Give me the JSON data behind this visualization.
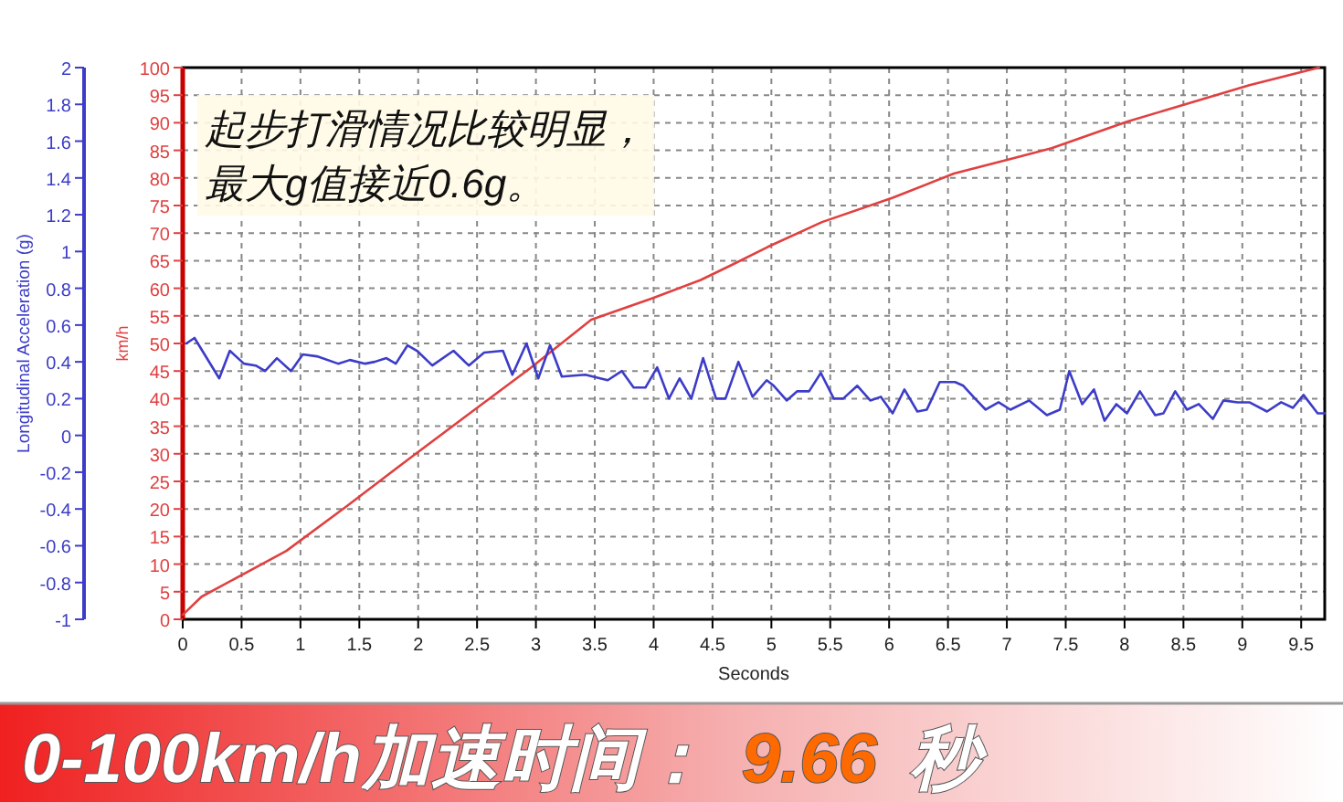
{
  "chart_data": {
    "type": "line",
    "xlabel": "Seconds",
    "ylabel": "km/h",
    "y2label": "Longitudinal Acceleration (g)",
    "annotations": [
      "起步打滑情况比较明显，",
      "最大g值接近0.6g。",
      "0-100km/h加速时间：",
      "9.66",
      "秒"
    ],
    "xlim": [
      0,
      9.7
    ],
    "xticks": [
      0,
      0.5,
      1,
      1.5,
      2,
      2.5,
      3,
      3.5,
      4,
      4.5,
      5,
      5.5,
      6,
      6.5,
      7,
      7.5,
      8,
      8.5,
      9,
      9.5
    ],
    "ylim": [
      0,
      100
    ],
    "yticks": [
      0,
      5,
      10,
      15,
      20,
      25,
      30,
      35,
      40,
      45,
      50,
      55,
      60,
      65,
      70,
      75,
      80,
      85,
      90,
      95,
      100
    ],
    "y2lim": [
      -1,
      2
    ],
    "y2ticks": [
      -1,
      -0.8,
      -0.6,
      -0.4,
      -0.2,
      0,
      0.2,
      0.4,
      0.6,
      0.8,
      1,
      1.2,
      1.4,
      1.6,
      1.8,
      2
    ],
    "grid": true,
    "line_style": "solid",
    "series": [
      {
        "color": "#e04040",
        "x": [
          0,
          0.16,
          0.88,
          1.4,
          1.91,
          2.43,
          2.95,
          3.47,
          3.99,
          4.4,
          4.66,
          4.97,
          5.43,
          6.03,
          6.55,
          7.04,
          7.38,
          8.02,
          8.54,
          9.06,
          9.65
        ],
        "values": [
          0.8,
          4.1,
          12.4,
          20.6,
          28.9,
          37.2,
          45.5,
          54.3,
          58.2,
          61.5,
          64.2,
          67.5,
          72,
          76.4,
          80.8,
          83.5,
          85.4,
          90.2,
          93.5,
          96.8,
          100
        ]
      },
      {
        "color": "#3c3cc8",
        "axis": "y2",
        "x": [
          0.03,
          0.1,
          0.31,
          0.4,
          0.52,
          0.62,
          0.7,
          0.8,
          0.92,
          1.02,
          1.14,
          1.32,
          1.42,
          1.55,
          1.63,
          1.73,
          1.81,
          1.91,
          1.99,
          2.12,
          2.3,
          2.43,
          2.56,
          2.72,
          2.8,
          2.92,
          3.02,
          3.12,
          3.22,
          3.42,
          3.61,
          3.73,
          3.83,
          3.93,
          4.03,
          4.13,
          4.22,
          4.32,
          4.42,
          4.53,
          4.61,
          4.72,
          4.84,
          4.96,
          5.02,
          5.13,
          5.22,
          5.32,
          5.42,
          5.53,
          5.61,
          5.73,
          5.84,
          5.93,
          6.03,
          6.13,
          6.24,
          6.32,
          6.43,
          6.56,
          6.63,
          6.73,
          6.82,
          6.93,
          7.03,
          7.19,
          7.34,
          7.45,
          7.53,
          7.64,
          7.74,
          7.83,
          7.93,
          8.02,
          8.13,
          8.26,
          8.33,
          8.43,
          8.53,
          8.63,
          8.75,
          8.84,
          8.96,
          9.06,
          9.21,
          9.33,
          9.43,
          9.52,
          9.64,
          9.7
        ],
        "values": [
          0.5,
          0.53,
          0.31,
          0.46,
          0.39,
          0.38,
          0.35,
          0.42,
          0.35,
          0.44,
          0.43,
          0.39,
          0.41,
          0.39,
          0.4,
          0.42,
          0.39,
          0.49,
          0.46,
          0.38,
          0.46,
          0.38,
          0.45,
          0.46,
          0.33,
          0.5,
          0.31,
          0.49,
          0.32,
          0.33,
          0.3,
          0.35,
          0.26,
          0.26,
          0.37,
          0.2,
          0.31,
          0.2,
          0.42,
          0.2,
          0.2,
          0.4,
          0.21,
          0.3,
          0.27,
          0.19,
          0.24,
          0.24,
          0.34,
          0.2,
          0.2,
          0.27,
          0.19,
          0.21,
          0.12,
          0.25,
          0.13,
          0.14,
          0.29,
          0.29,
          0.27,
          0.2,
          0.14,
          0.18,
          0.14,
          0.19,
          0.11,
          0.14,
          0.35,
          0.17,
          0.25,
          0.08,
          0.17,
          0.12,
          0.24,
          0.11,
          0.12,
          0.24,
          0.14,
          0.17,
          0.09,
          0.19,
          0.18,
          0.18,
          0.13,
          0.18,
          0.15,
          0.22,
          0.12,
          0.12
        ]
      }
    ]
  }
}
